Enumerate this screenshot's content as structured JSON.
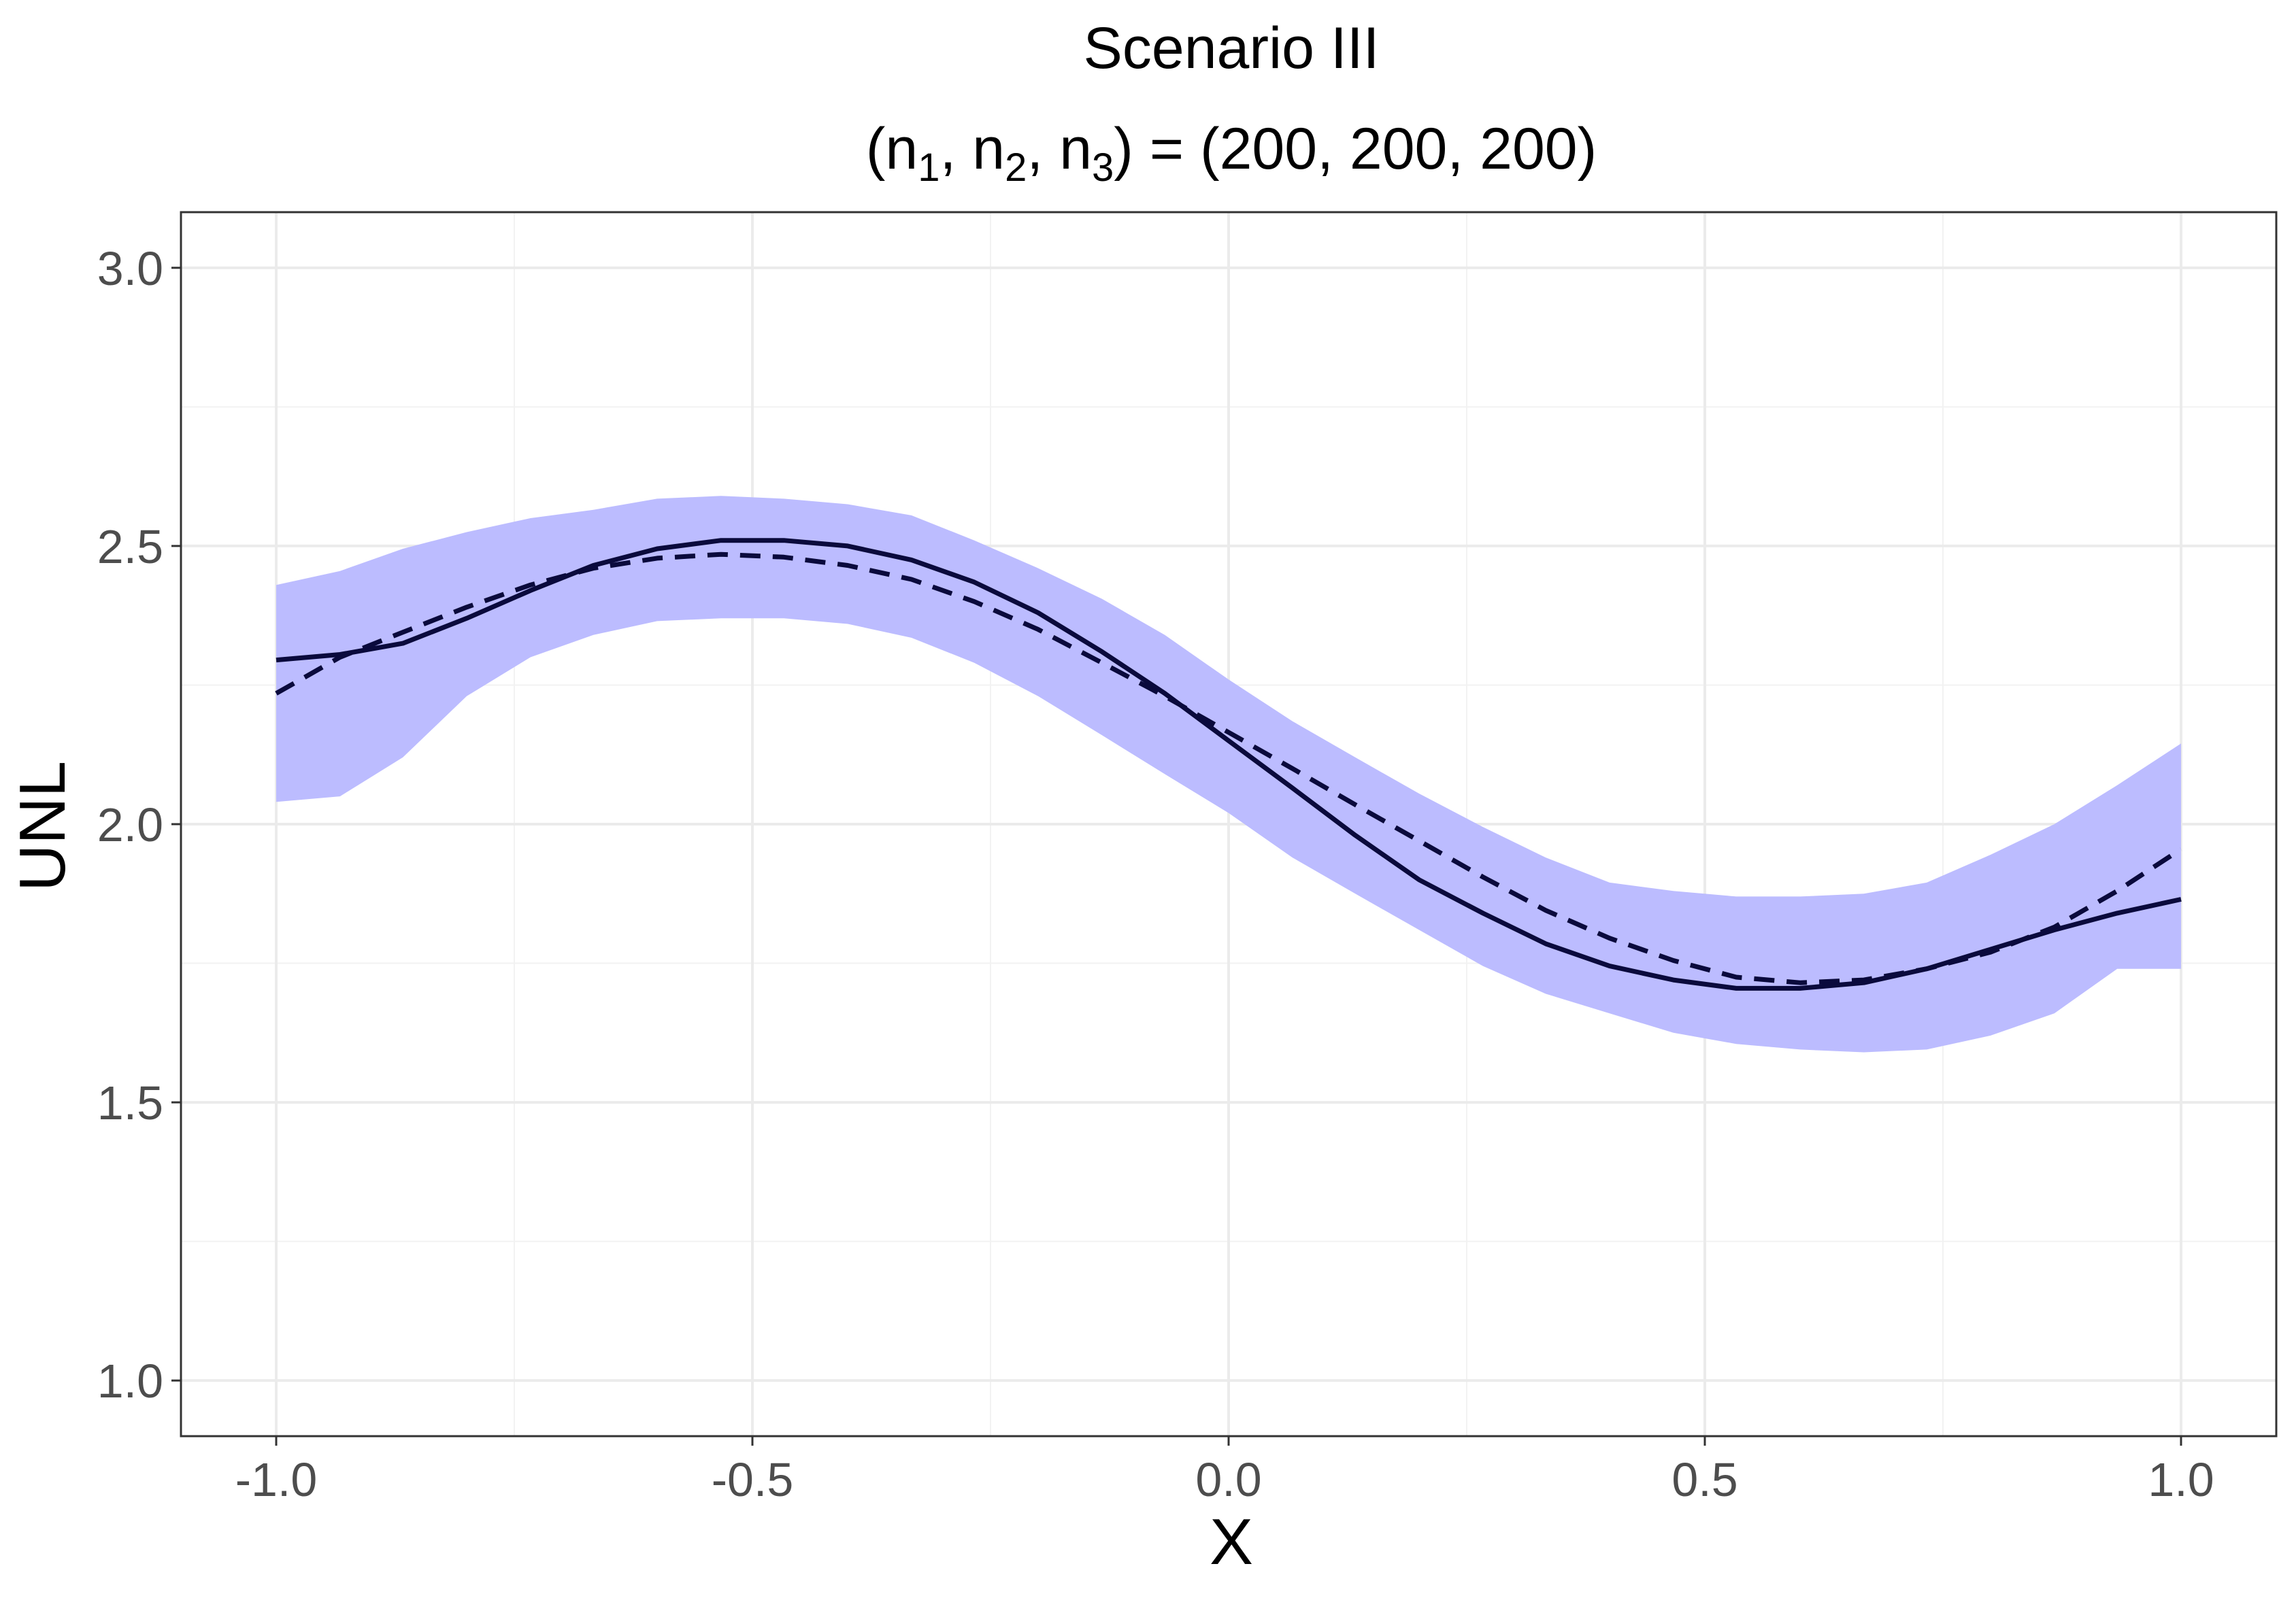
{
  "chart_data": {
    "type": "line",
    "title": "Scenario III",
    "subtitle": {
      "prefix": "(",
      "terms": [
        {
          "base": "n",
          "sub": "1"
        },
        {
          "base": "n",
          "sub": "2"
        },
        {
          "base": "n",
          "sub": "3"
        }
      ],
      "suffix": ") = (200, 200, 200)"
    },
    "xlabel": "X",
    "ylabel": "UNL",
    "xlim": [
      -1.1,
      1.1
    ],
    "ylim": [
      0.9,
      3.1
    ],
    "x_ticks": [
      -1.0,
      -0.5,
      0.0,
      0.5,
      1.0
    ],
    "x_tick_labels": [
      "-1.0",
      "-0.5",
      "0.0",
      "0.5",
      "1.0"
    ],
    "y_ticks": [
      1.0,
      1.5,
      2.0,
      2.5,
      3.0
    ],
    "y_tick_labels": [
      "1.0",
      "1.5",
      "2.0",
      "2.5",
      "3.0"
    ],
    "x_minor": [
      -0.75,
      -0.25,
      0.25,
      0.75
    ],
    "y_minor": [
      1.25,
      1.75,
      2.25,
      2.75
    ],
    "grid": true,
    "x": [
      -1.0,
      -0.933,
      -0.867,
      -0.8,
      -0.733,
      -0.667,
      -0.6,
      -0.533,
      -0.467,
      -0.4,
      -0.333,
      -0.267,
      -0.2,
      -0.133,
      -0.067,
      0.0,
      0.067,
      0.133,
      0.2,
      0.267,
      0.333,
      0.4,
      0.467,
      0.533,
      0.6,
      0.667,
      0.733,
      0.8,
      0.867,
      0.933,
      1.0
    ],
    "band": {
      "color": "#bcbcff",
      "lower": [
        2.04,
        2.05,
        2.12,
        2.23,
        2.3,
        2.34,
        2.365,
        2.37,
        2.37,
        2.36,
        2.335,
        2.29,
        2.23,
        2.16,
        2.09,
        2.02,
        1.94,
        1.875,
        1.81,
        1.745,
        1.695,
        1.66,
        1.625,
        1.605,
        1.595,
        1.59,
        1.595,
        1.62,
        1.66,
        1.74,
        1.74
      ],
      "upper": [
        2.43,
        2.455,
        2.495,
        2.525,
        2.55,
        2.565,
        2.585,
        2.59,
        2.585,
        2.575,
        2.555,
        2.51,
        2.46,
        2.405,
        2.34,
        2.26,
        2.185,
        2.12,
        2.055,
        1.995,
        1.94,
        1.895,
        1.88,
        1.87,
        1.87,
        1.875,
        1.895,
        1.945,
        2.0,
        2.07,
        2.145
      ]
    },
    "series": [
      {
        "style": "solid",
        "color": "#0a0a3c",
        "values": [
          2.295,
          2.305,
          2.325,
          2.37,
          2.42,
          2.465,
          2.495,
          2.51,
          2.51,
          2.5,
          2.475,
          2.435,
          2.38,
          2.31,
          2.235,
          2.15,
          2.065,
          1.98,
          1.9,
          1.84,
          1.785,
          1.745,
          1.72,
          1.705,
          1.705,
          1.715,
          1.74,
          1.775,
          1.81,
          1.84,
          1.865
        ]
      },
      {
        "style": "dashed",
        "color": "#0a0a3c",
        "values": [
          2.235,
          2.3,
          2.345,
          2.39,
          2.43,
          2.46,
          2.478,
          2.485,
          2.48,
          2.465,
          2.44,
          2.4,
          2.35,
          2.29,
          2.23,
          2.165,
          2.1,
          2.035,
          1.97,
          1.905,
          1.845,
          1.795,
          1.755,
          1.725,
          1.715,
          1.72,
          1.74,
          1.77,
          1.815,
          1.88,
          1.955
        ]
      }
    ]
  }
}
